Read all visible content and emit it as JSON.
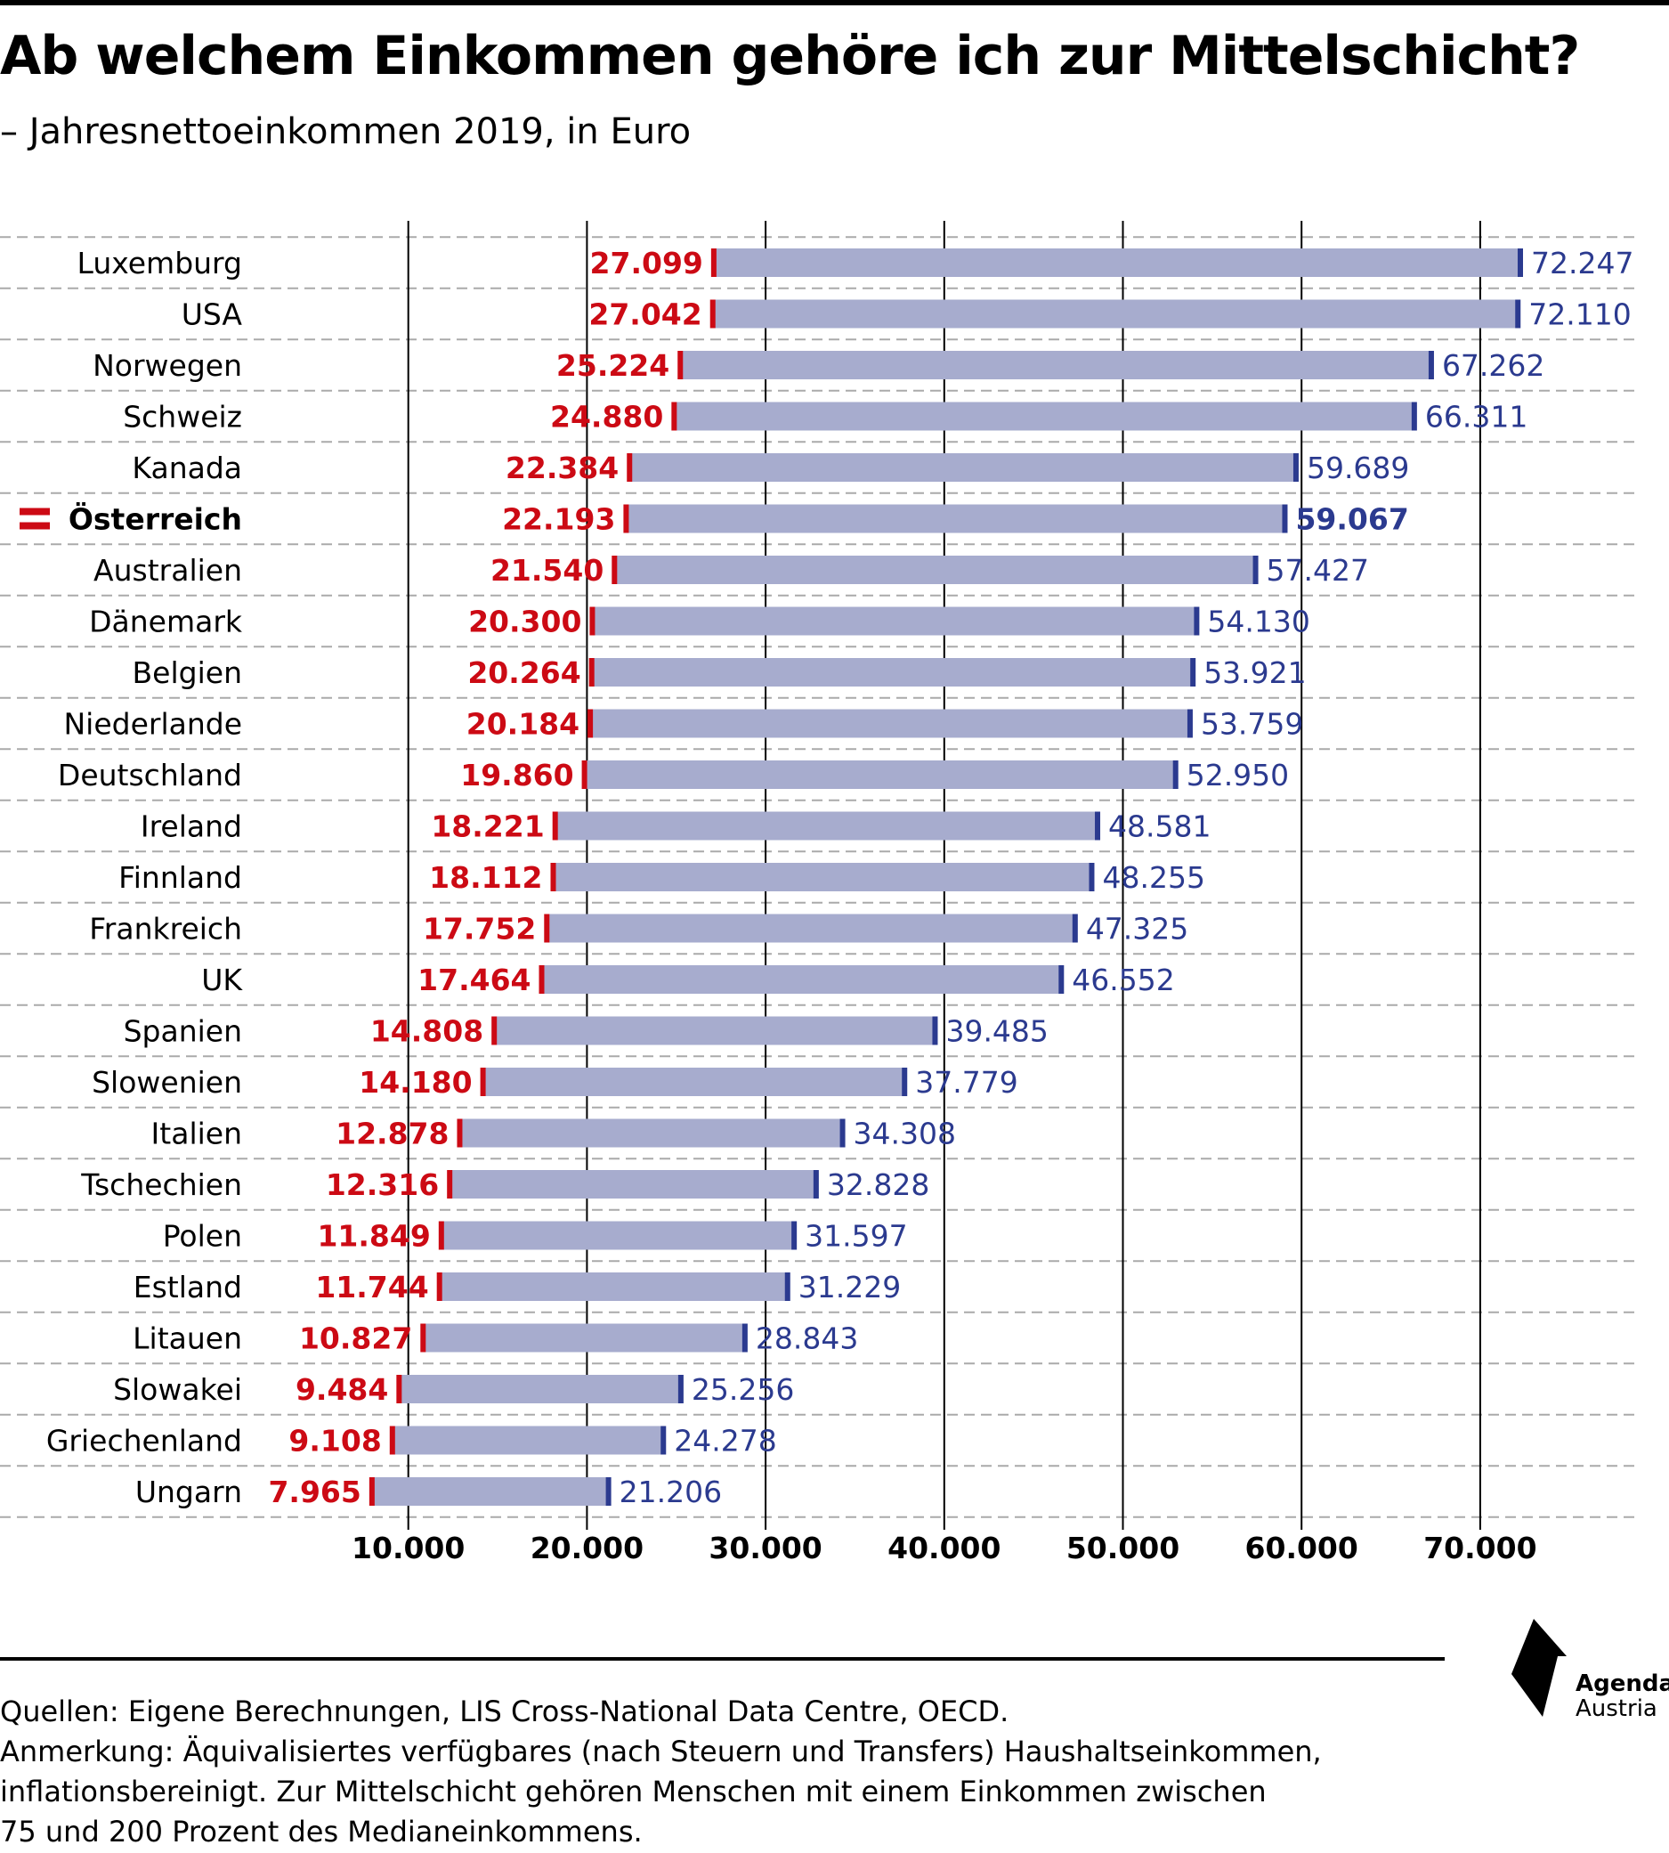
{
  "title": "Ab welchem Einkommen gehöre ich zur Mittelschicht?",
  "subtitle": "– Jahresnettoeinkommen 2019, in Euro",
  "chart_data": {
    "type": "bar",
    "subtype": "floating-range",
    "title": "Ab welchem Einkommen gehöre ich zur Mittelschicht?",
    "subtitle": "– Jahresnettoeinkommen 2019, in Euro",
    "xlim": [
      10000,
      70000
    ],
    "xticks": [
      10000,
      20000,
      30000,
      40000,
      50000,
      60000,
      70000
    ],
    "xtick_labels": [
      "10.000",
      "20.000",
      "30.000",
      "40.000",
      "50.000",
      "60.000",
      "70.000"
    ],
    "grid": true,
    "highlight": "Österreich",
    "colors": {
      "bar": "#a7acce",
      "lower": "#cc0a14",
      "upper": "#2b3a8f",
      "grid": "#000000",
      "row_divider": "#aaaaaa"
    },
    "categories": [
      "Luxemburg",
      "USA",
      "Norwegen",
      "Schweiz",
      "Kanada",
      "Österreich",
      "Australien",
      "Dänemark",
      "Belgien",
      "Niederlande",
      "Deutschland",
      "Ireland",
      "Finnland",
      "Frankreich",
      "UK",
      "Spanien",
      "Slowenien",
      "Italien",
      "Tschechien",
      "Polen",
      "Estland",
      "Litauen",
      "Slowakei",
      "Griechenland",
      "Ungarn"
    ],
    "lower": [
      27099,
      27042,
      25224,
      24880,
      22384,
      22193,
      21540,
      20300,
      20264,
      20184,
      19860,
      18221,
      18112,
      17752,
      17464,
      14808,
      14180,
      12878,
      12316,
      11849,
      11744,
      10827,
      9484,
      9108,
      7965
    ],
    "upper": [
      72247,
      72110,
      67262,
      66311,
      59689,
      59067,
      57427,
      54130,
      53921,
      53759,
      52950,
      48581,
      48255,
      47325,
      46552,
      39485,
      37779,
      34308,
      32828,
      31597,
      31229,
      28843,
      25256,
      24278,
      21206
    ],
    "lower_labels": [
      "27.099",
      "27.042",
      "25.224",
      "24.880",
      "22.384",
      "22.193",
      "21.540",
      "20.300",
      "20.264",
      "20.184",
      "19.860",
      "18.221",
      "18.112",
      "17.752",
      "17.464",
      "14.808",
      "14.180",
      "12.878",
      "12.316",
      "11.849",
      "11.744",
      "10.827",
      "9.484",
      "9.108",
      "7.965"
    ],
    "upper_labels": [
      "72.247",
      "72.110",
      "67.262",
      "66.311",
      "59.689",
      "59.067",
      "57.427",
      "54.130",
      "53.921",
      "53.759",
      "52.950",
      "48.581",
      "48.255",
      "47.325",
      "46.552",
      "39.485",
      "37.779",
      "34.308",
      "32.828",
      "31.597",
      "31.229",
      "28.843",
      "25.256",
      "24.278",
      "21.206"
    ]
  },
  "footer": {
    "sources": "Quellen: Eigene Berechnungen, LIS Cross-National Data Centre, OECD.",
    "note_lines": [
      "Anmerkung: Äquivalisiertes verfügbares (nach Steuern und Transfers) Haushaltseinkommen,",
      "inflationsbereinigt. Zur Mittelschicht gehören Menschen mit einem Einkommen zwischen",
      "75 und 200 Prozent des Medianeinkommens."
    ]
  },
  "logo": {
    "line1": "Agenda",
    "line2": "Austria",
    "icon": "agenda-austria-logo"
  },
  "flag_icon": "austria-flag-icon"
}
